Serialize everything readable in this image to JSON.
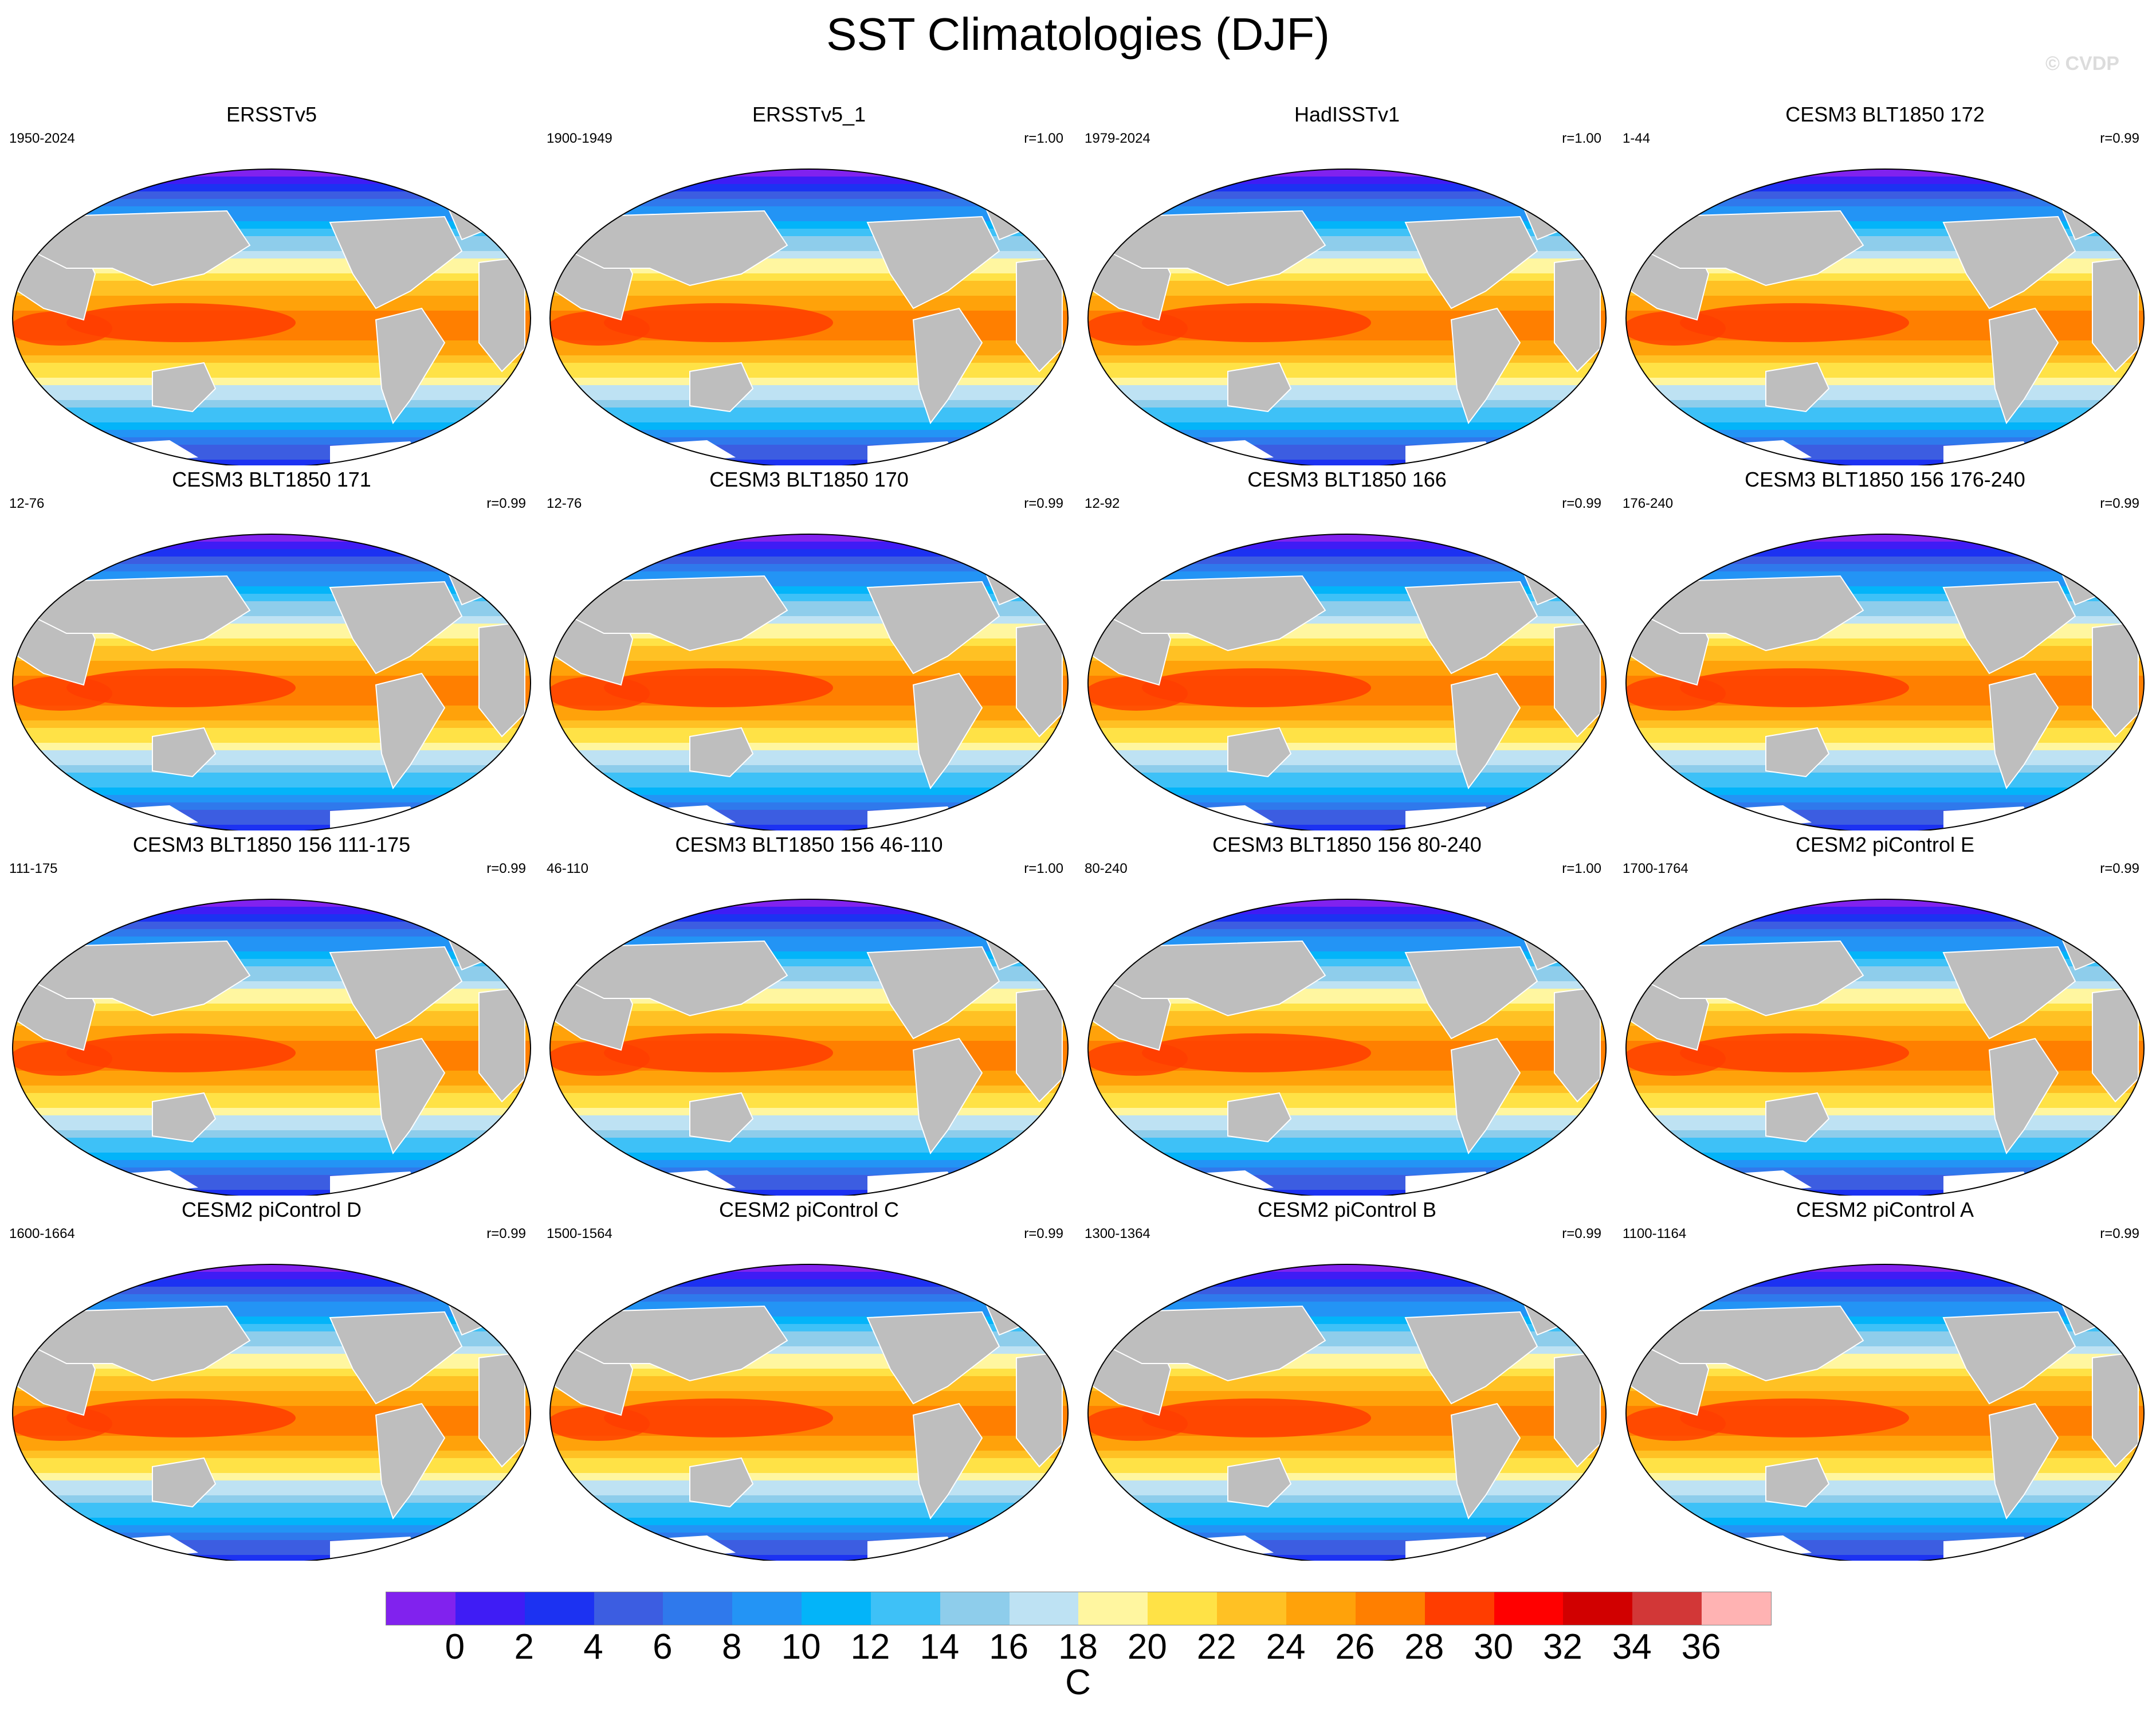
{
  "title": "SST Climatologies (DJF)",
  "watermark": "© CVDP",
  "land_color": "#bebebe",
  "panels": [
    {
      "title": "ERSSTv5",
      "period": "1950-2024",
      "corr": ""
    },
    {
      "title": "ERSSTv5_1",
      "period": "1900-1949",
      "corr": "r=1.00"
    },
    {
      "title": "HadISSTv1",
      "period": "1979-2024",
      "corr": "r=1.00"
    },
    {
      "title": "CESM3 BLT1850 172",
      "period": "1-44",
      "corr": "r=0.99"
    },
    {
      "title": "CESM3 BLT1850 171",
      "period": "12-76",
      "corr": "r=0.99"
    },
    {
      "title": "CESM3 BLT1850 170",
      "period": "12-76",
      "corr": "r=0.99"
    },
    {
      "title": "CESM3 BLT1850 166",
      "period": "12-92",
      "corr": "r=0.99"
    },
    {
      "title": "CESM3 BLT1850 156 176-240",
      "period": "176-240",
      "corr": "r=0.99"
    },
    {
      "title": "CESM3 BLT1850 156 111-175",
      "period": "111-175",
      "corr": "r=0.99"
    },
    {
      "title": "CESM3 BLT1850 156 46-110",
      "period": "46-110",
      "corr": "r=1.00"
    },
    {
      "title": "CESM3 BLT1850 156 80-240",
      "period": "80-240",
      "corr": "r=1.00"
    },
    {
      "title": "CESM2 piControl E",
      "period": "1700-1764",
      "corr": "r=0.99"
    },
    {
      "title": "CESM2 piControl D",
      "period": "1600-1664",
      "corr": "r=0.99"
    },
    {
      "title": "CESM2 piControl C",
      "period": "1500-1564",
      "corr": "r=0.99"
    },
    {
      "title": "CESM2 piControl B",
      "period": "1300-1364",
      "corr": "r=0.99"
    },
    {
      "title": "CESM2 piControl A",
      "period": "1100-1164",
      "corr": "r=0.99"
    }
  ],
  "colorbar": {
    "unit": "C",
    "ticks": [
      "0",
      "2",
      "4",
      "6",
      "8",
      "10",
      "12",
      "14",
      "16",
      "18",
      "20",
      "22",
      "24",
      "26",
      "28",
      "30",
      "32",
      "34",
      "36"
    ],
    "colors": [
      "#8122ee",
      "#3f1cf5",
      "#1c32f2",
      "#3c5de1",
      "#2f79ec",
      "#2394f5",
      "#03b4f9",
      "#3ec1f7",
      "#8ecdeb",
      "#bee2f3",
      "#fff6a0",
      "#ffe246",
      "#ffc124",
      "#ffa20a",
      "#ff7f00",
      "#ff3d00",
      "#ff0000",
      "#d10000",
      "#d23737",
      "#ffb3b3"
    ]
  }
}
